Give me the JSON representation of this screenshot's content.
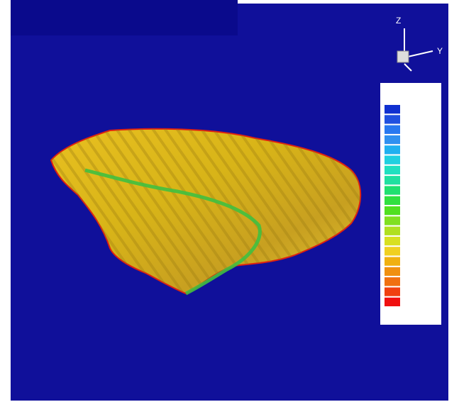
{
  "axes": {
    "z_label": "Z",
    "y_label": "Y"
  },
  "legend": {
    "colors": [
      "#1030d0",
      "#2050e0",
      "#2878f0",
      "#3090f0",
      "#20b0f0",
      "#20d0e0",
      "#20e0c0",
      "#20e0a0",
      "#20e070",
      "#30e040",
      "#50e020",
      "#80e020",
      "#b0e020",
      "#d8e020",
      "#f0d020",
      "#f0b010",
      "#f09010",
      "#f07010",
      "#f04010",
      "#f01010"
    ]
  }
}
